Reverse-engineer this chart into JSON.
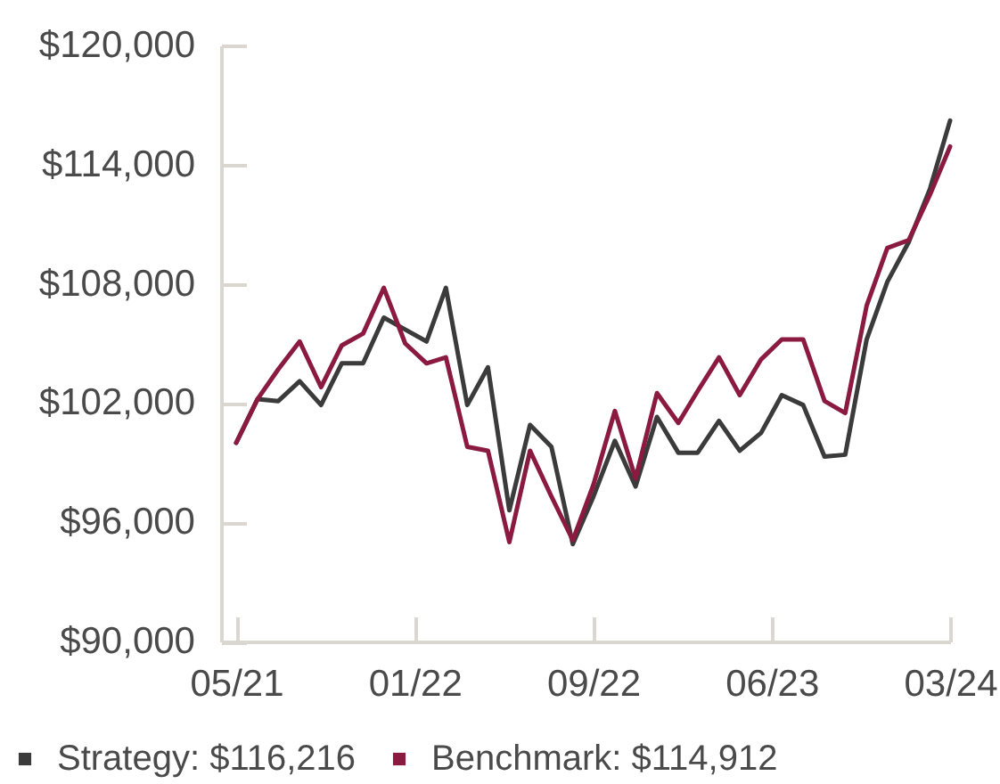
{
  "chart_data": {
    "type": "line",
    "x": [
      "2021-05",
      "2021-06",
      "2021-07",
      "2021-08",
      "2021-09",
      "2021-10",
      "2021-11",
      "2021-12",
      "2022-01",
      "2022-02",
      "2022-03",
      "2022-04",
      "2022-05",
      "2022-06",
      "2022-07",
      "2022-08",
      "2022-09",
      "2022-10",
      "2022-11",
      "2022-12",
      "2023-01",
      "2023-02",
      "2023-03",
      "2023-04",
      "2023-05",
      "2023-06",
      "2023-07",
      "2023-08",
      "2023-09",
      "2023-10",
      "2023-11",
      "2023-12",
      "2024-01",
      "2024-02",
      "2024-03"
    ],
    "series": [
      {
        "name": "Strategy: $116,216",
        "color": "#3b3b3b",
        "values": [
          100000,
          102200,
          102100,
          103100,
          101900,
          104000,
          104000,
          106300,
          105700,
          105100,
          107800,
          101900,
          103800,
          96600,
          100900,
          99800,
          94900,
          97300,
          100100,
          97800,
          101300,
          99500,
          99500,
          101100,
          99600,
          100500,
          102400,
          101900,
          99300,
          99400,
          105200,
          108100,
          110100,
          112800,
          116216
        ]
      },
      {
        "name": "Benchmark: $114,912",
        "color": "#8a1a3f",
        "values": [
          100000,
          102200,
          103700,
          105100,
          102800,
          104900,
          105500,
          107800,
          105000,
          104000,
          104300,
          99800,
          99600,
          95000,
          99600,
          97300,
          95100,
          97900,
          101600,
          98200,
          102500,
          101000,
          102600,
          104300,
          102400,
          104200,
          105200,
          105200,
          102100,
          101500,
          106900,
          109800,
          110200,
          112500,
          114912
        ]
      }
    ],
    "xlim": [
      "2021-04-09",
      "2024-03"
    ],
    "xticks": [
      {
        "value": "2021-05",
        "label": "05/21"
      },
      {
        "value": "2022-01-14T18:00",
        "label": "01/22"
      },
      {
        "value": "2022-09-30T12:00",
        "label": "09/22"
      },
      {
        "value": "2023-06-16T06:00",
        "label": "06/23"
      },
      {
        "value": "2024-03",
        "label": "03/24"
      }
    ],
    "ylim": [
      90000,
      120000
    ],
    "yticks": [
      {
        "value": 90000,
        "label": "$90,000"
      },
      {
        "value": 96000,
        "label": "$96,000"
      },
      {
        "value": 102000,
        "label": "$102,000"
      },
      {
        "value": 108000,
        "label": "$108,000"
      },
      {
        "value": 114000,
        "label": "$114,000"
      },
      {
        "value": 120000,
        "label": "$120,000"
      }
    ],
    "legend": "bottom"
  }
}
